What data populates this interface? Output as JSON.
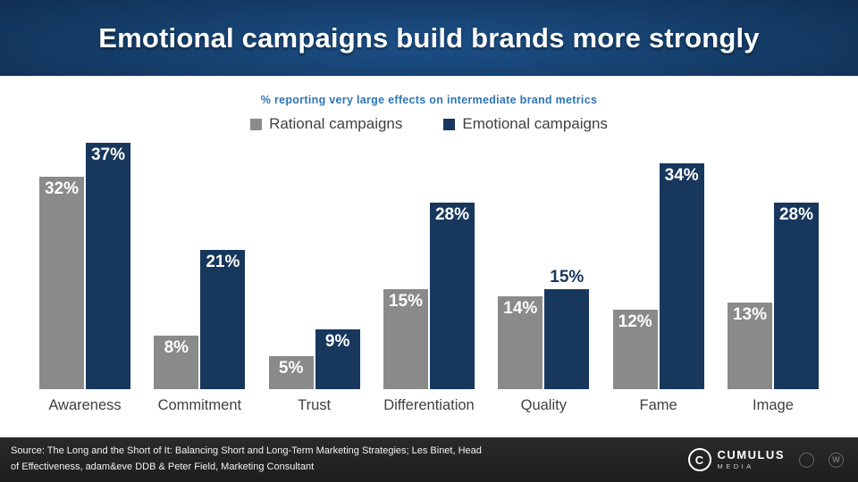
{
  "slide": {
    "title": "Emotional campaigns build brands more strongly",
    "subtitle": "% reporting very large effects on intermediate brand metrics"
  },
  "chart_data": {
    "type": "bar",
    "title": "% reporting very large effects on intermediate brand metrics",
    "categories": [
      "Awareness",
      "Commitment",
      "Trust",
      "Differentiation",
      "Quality",
      "Fame",
      "Image"
    ],
    "series": [
      {
        "name": "Rational campaigns",
        "color": "#8a8a8a",
        "values": [
          32,
          8,
          5,
          15,
          14,
          12,
          13
        ]
      },
      {
        "name": "Emotional campaigns",
        "color": "#17375d",
        "values": [
          37,
          21,
          9,
          28,
          15,
          34,
          28
        ],
        "outside_label_indices": [
          4
        ]
      }
    ],
    "value_suffix": "%",
    "ylim": [
      0,
      38
    ],
    "grid": false,
    "legend_position": "top",
    "value_label_color_inside": "#ffffff",
    "value_label_color_outside": "#17375d"
  },
  "footer": {
    "source_line1": "Source: The Long and the Short of It: Balancing Short and Long-Term Marketing Strategies; Les Binet, Head",
    "source_line2": "of Effectiveness, adam&eve DDB & Peter Field, Marketing Consultant",
    "cumulus": {
      "icon": "cumulus-c-ring-icon",
      "name": "CUMULUS",
      "sub": "MEDIA"
    },
    "partner_icons": [
      "compass-ring-icon",
      "w-circle-icon"
    ],
    "partner_glyph": "W"
  }
}
